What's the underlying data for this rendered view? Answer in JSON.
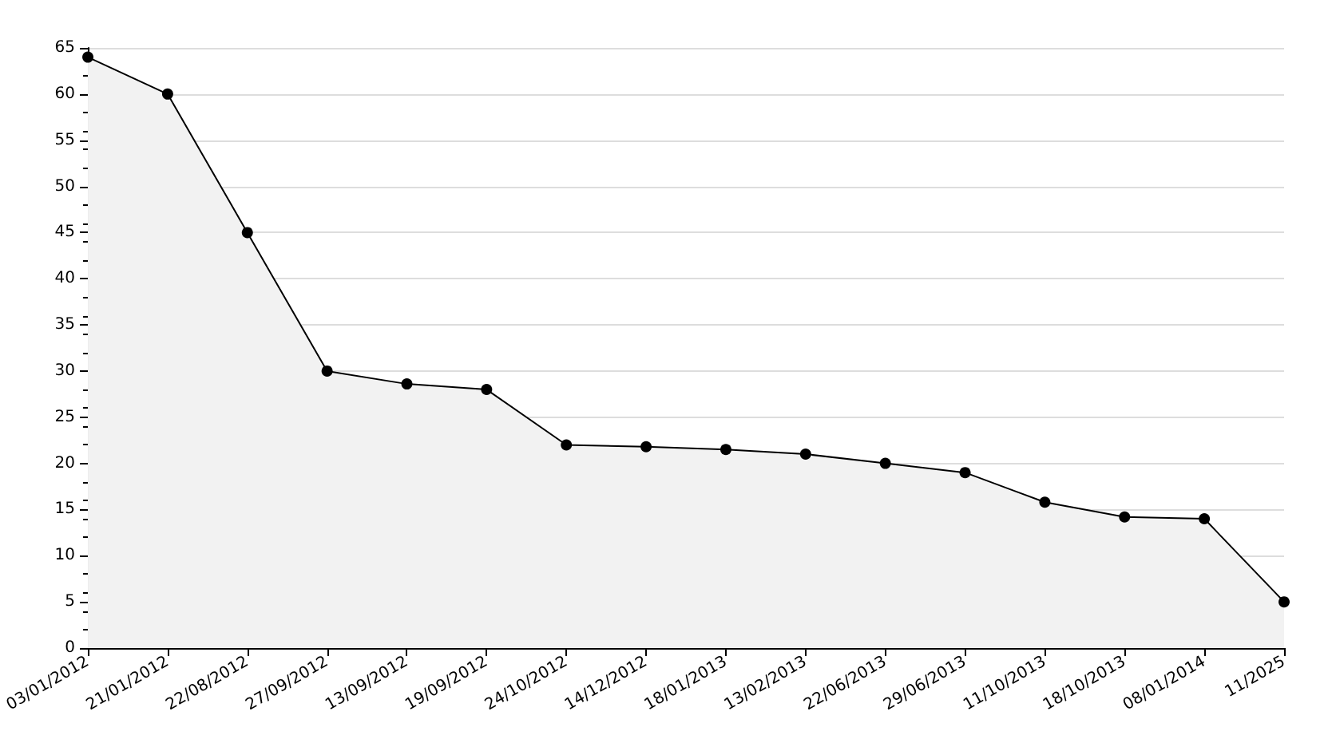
{
  "chart_data": {
    "type": "area",
    "categories": [
      "03/01/2012",
      "21/01/2012",
      "22/08/2012",
      "27/09/2012",
      "13/09/2012",
      "19/09/2012",
      "24/10/2012",
      "14/12/2012",
      "18/01/2013",
      "13/02/2013",
      "22/06/2013",
      "29/06/2013",
      "11/10/2013",
      "18/10/2013",
      "08/01/2014",
      "11/2025"
    ],
    "series": [
      {
        "color": "#000000",
        "values": [
          64,
          60,
          45,
          30,
          28.6,
          28,
          22,
          21.8,
          21.5,
          21,
          20,
          19,
          15.8,
          14.2,
          14,
          5
        ]
      }
    ],
    "ylim": [
      0,
      65
    ],
    "yticks": [
      0,
      5,
      10,
      15,
      20,
      25,
      30,
      35,
      40,
      45,
      50,
      55,
      60,
      65
    ],
    "grid": "y",
    "marker": "circle",
    "line_style": "solid"
  }
}
